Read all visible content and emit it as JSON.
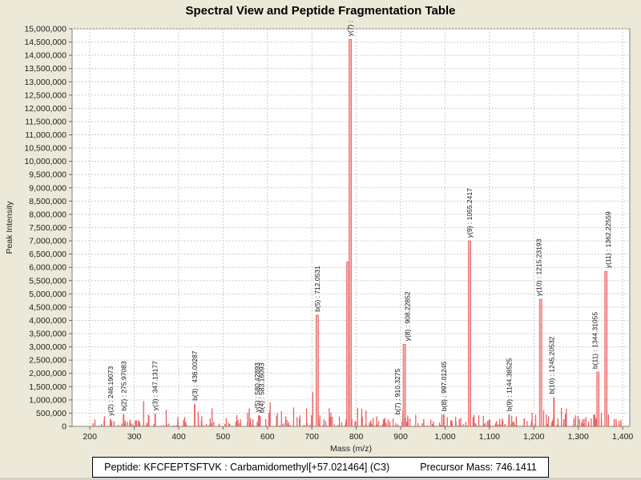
{
  "title": "Spectral View and Peptide Fragmentation Table",
  "info_bar": {
    "peptide_label": "Peptide: KFCFEPTSFTVK : Carbamidomethyl[+57.021464] (C3)",
    "precursor_label": "Precursor Mass: 746.1411"
  },
  "colors": {
    "background": "#ece9d8",
    "plot_background": "#ffffff",
    "grid": "#cccccc",
    "axis_border": "#808080",
    "tick_mark": "#666666",
    "tick_text": "#222222",
    "peak": "#e96060",
    "major_peak_fill": "#f4abab",
    "peak_label_text": "#111111",
    "info_box_background": "#ffffff",
    "info_box_border": "#000000"
  },
  "chart_data": {
    "type": "bar",
    "title": "Spectral View and Peptide Fragmentation Table",
    "xlabel": "Mass (m/z)",
    "ylabel": "Peak Intensity",
    "xlim": [
      160,
      1416
    ],
    "xtick_start": 200,
    "xtick_end": 1400,
    "xtick_step": 100,
    "ylim": [
      0,
      15000000
    ],
    "ytick_step": 500000,
    "grid": true,
    "grid_style": "dashed",
    "legend": "none",
    "labeled_peaks": [
      {
        "ion": "y(2)",
        "label": "y(2) : 246.19073",
        "mz": 246.19073,
        "intensity": 280000,
        "label_dx": 0
      },
      {
        "ion": "b(2)",
        "label": "b(2) : 275.97083",
        "mz": 275.97083,
        "intensity": 460000,
        "label_dx": 0
      },
      {
        "ion": "y(3)",
        "label": "y(3) : 347.13177",
        "mz": 347.13177,
        "intensity": 480000,
        "label_dx": 0
      },
      {
        "ion": "b(3)",
        "label": "b(3) : 436.00287",
        "mz": 436.00287,
        "intensity": 850000,
        "label_dx": 0
      },
      {
        "ion": "y(5)",
        "label": "y(5) : 580.42893",
        "mz": 580.42893,
        "intensity": 420000,
        "label_dx": -2
      },
      {
        "ion": "b(4)",
        "label": "b(4) : 583.16093",
        "mz": 583.16093,
        "intensity": 390000,
        "label_dx": 2
      },
      {
        "ion": "b(5)",
        "label": "b(5) : 712.0531",
        "mz": 712.0531,
        "intensity": 4200000,
        "label_dx": 0
      },
      {
        "ion": "y(7)",
        "label": "y(7) :",
        "mz": 786.4,
        "intensity": 14600000,
        "label_dx": 0,
        "value_clipped": true
      },
      {
        "ion": "y(8)",
        "label": "y(8) : 908.22852",
        "mz": 908.22852,
        "intensity": 3100000,
        "label_dx": 4
      },
      {
        "ion": "b(7)",
        "label": "b(7) : 910.3275",
        "mz": 910.3275,
        "intensity": 320000,
        "label_dx": -10
      },
      {
        "ion": "b(8)",
        "label": "b(8) : 997.01245",
        "mz": 997.01245,
        "intensity": 450000,
        "label_dx": 0
      },
      {
        "ion": "y(9)",
        "label": "y(9) : 1055.2417",
        "mz": 1055.2417,
        "intensity": 7000000,
        "label_dx": 0
      },
      {
        "ion": "b(9)",
        "label": "b(9) : 1144.38525",
        "mz": 1144.38525,
        "intensity": 450000,
        "label_dx": 0
      },
      {
        "ion": "y(10)",
        "label": "y(10) : 1215.23193",
        "mz": 1215.23193,
        "intensity": 4800000,
        "label_dx": -2
      },
      {
        "ion": "b(10)",
        "label": "b(10) : 1245.20532",
        "mz": 1245.20532,
        "intensity": 1100000,
        "label_dx": -3
      },
      {
        "ion": "b(11)",
        "label": "b(11) : 1344.31055",
        "mz": 1344.31055,
        "intensity": 2050000,
        "label_dx": -4
      },
      {
        "ion": "y(11)",
        "label": "y(11) : 1362.22559",
        "mz": 1362.22559,
        "intensity": 5850000,
        "label_dx": 3
      }
    ],
    "minor_peaks": [
      [
        321,
        950000
      ],
      [
        333,
        400000
      ],
      [
        372,
        620000
      ],
      [
        398,
        350000
      ],
      [
        444,
        560000
      ],
      [
        452,
        380000
      ],
      [
        471,
        300000
      ],
      [
        531,
        420000
      ],
      [
        562,
        300000
      ],
      [
        606,
        900000
      ],
      [
        622,
        500000
      ],
      [
        641,
        380000
      ],
      [
        672,
        300000
      ],
      [
        702,
        1300000
      ],
      [
        718,
        420000
      ],
      [
        741,
        350000
      ],
      [
        762,
        380000
      ],
      [
        781,
        6200000
      ],
      [
        803,
        700000
      ],
      [
        812,
        420000
      ],
      [
        838,
        320000
      ],
      [
        862,
        280000
      ],
      [
        883,
        300000
      ],
      [
        905,
        600000
      ],
      [
        921,
        300000
      ],
      [
        952,
        280000
      ],
      [
        968,
        250000
      ],
      [
        1005,
        350000
      ],
      [
        1032,
        280000
      ],
      [
        1063,
        350000
      ],
      [
        1076,
        420000
      ],
      [
        1101,
        260000
      ],
      [
        1123,
        280000
      ],
      [
        1150,
        400000
      ],
      [
        1178,
        300000
      ],
      [
        1196,
        520000
      ],
      [
        1204,
        450000
      ],
      [
        1222,
        600000
      ],
      [
        1233,
        380000
      ],
      [
        1262,
        700000
      ],
      [
        1271,
        480000
      ],
      [
        1290,
        300000
      ],
      [
        1310,
        260000
      ],
      [
        1329,
        300000
      ],
      [
        1352,
        500000
      ],
      [
        1368,
        450000
      ],
      [
        1381,
        280000
      ]
    ],
    "noise": {
      "seed": 7,
      "count": 340,
      "mz_min": 204,
      "mz_max": 1402,
      "base_intensity": 25000,
      "max_extra": 430000,
      "dense_region": [
        420,
        840
      ],
      "dense_boost": 1.6
    }
  }
}
